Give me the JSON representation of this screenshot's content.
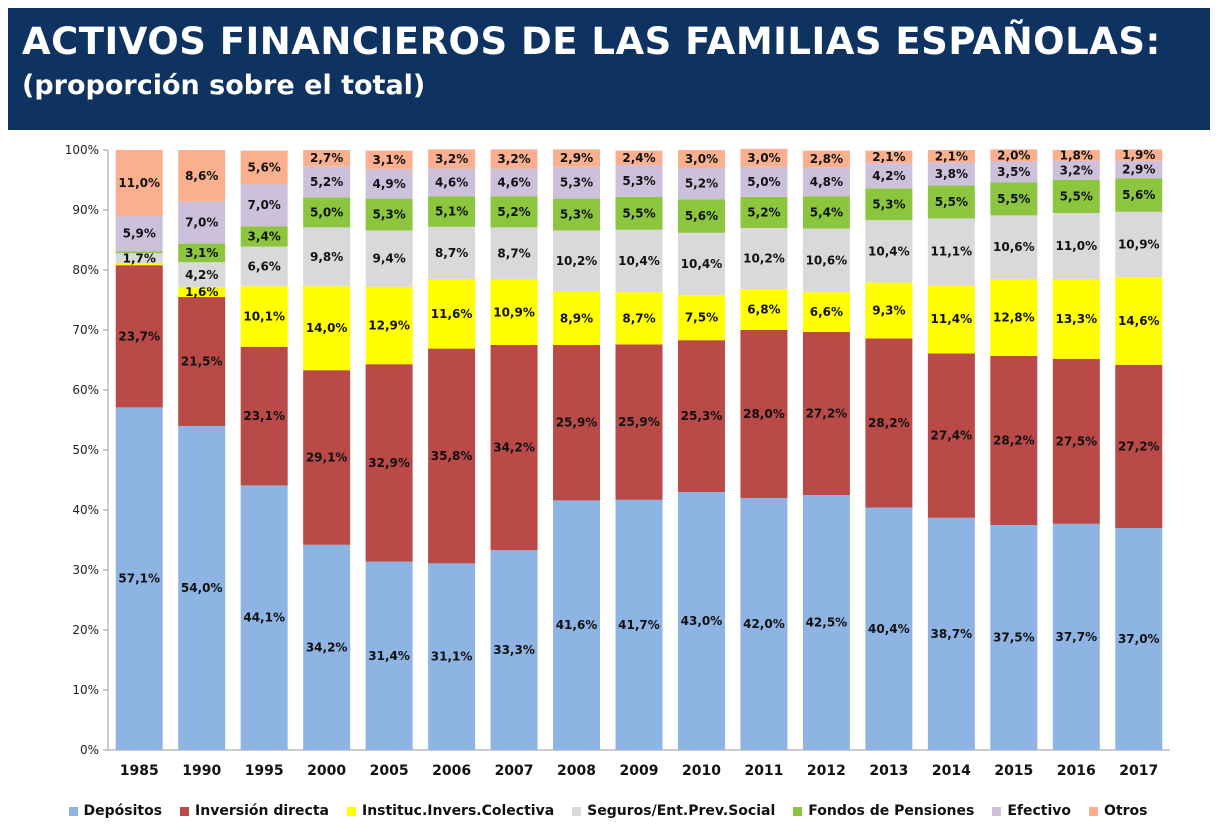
{
  "header": {
    "title": "ACTIVOS FINANCIEROS DE LAS FAMILIAS ESPAÑOLAS:",
    "subtitle": "(proporción sobre el total)"
  },
  "chart_data": {
    "type": "bar",
    "stacked": true,
    "categories": [
      "1985",
      "1990",
      "1995",
      "2000",
      "2005",
      "2006",
      "2007",
      "2008",
      "2009",
      "2010",
      "2011",
      "2012",
      "2013",
      "2014",
      "2015",
      "2016",
      "2017"
    ],
    "ylim": [
      0,
      100
    ],
    "yticks": [
      "0%",
      "10%",
      "20%",
      "30%",
      "40%",
      "50%",
      "60%",
      "70%",
      "80%",
      "90%",
      "100%"
    ],
    "grid": false,
    "legend_position": "bottom",
    "series": [
      {
        "name": "Depósitos",
        "color": "#8eb4e3",
        "values": [
          57.1,
          54.0,
          44.1,
          34.2,
          31.4,
          31.1,
          33.3,
          41.6,
          41.7,
          43.0,
          42.0,
          42.5,
          40.4,
          38.7,
          37.5,
          37.7,
          37.0
        ],
        "labels": [
          "57,1%",
          "54,0%",
          "44,1%",
          "34,2%",
          "31,4%",
          "31,1%",
          "33,3%",
          "41,6%",
          "41,7%",
          "43,0%",
          "42,0%",
          "42,5%",
          "40,4%",
          "38,7%",
          "37,5%",
          "37,7%",
          "37,0%"
        ]
      },
      {
        "name": "Inversión directa",
        "color": "#b94a48",
        "values": [
          23.7,
          21.5,
          23.1,
          29.1,
          32.9,
          35.8,
          34.2,
          25.9,
          25.9,
          25.3,
          28.0,
          27.2,
          28.2,
          27.4,
          28.2,
          27.5,
          27.2
        ],
        "labels": [
          "23,7%",
          "21,5%",
          "23,1%",
          "29,1%",
          "32,9%",
          "35,8%",
          "34,2%",
          "25,9%",
          "25,9%",
          "25,3%",
          "28,0%",
          "27,2%",
          "28,2%",
          "27,4%",
          "28,2%",
          "27,5%",
          "27,2%"
        ]
      },
      {
        "name": "Instituc.Invers.Colectiva",
        "color": "#ffff00",
        "values": [
          0.3,
          1.6,
          10.1,
          14.0,
          12.9,
          11.6,
          10.9,
          8.9,
          8.7,
          7.5,
          6.8,
          6.6,
          9.3,
          11.4,
          12.8,
          13.3,
          14.6
        ],
        "labels": [
          "",
          "1,6%",
          "10,1%",
          "14,0%",
          "12,9%",
          "11,6%",
          "10,9%",
          "8,9%",
          "8,7%",
          "7,5%",
          "6,8%",
          "6,6%",
          "9,3%",
          "11,4%",
          "12,8%",
          "13,3%",
          "14,6%"
        ]
      },
      {
        "name": "Seguros/Ent.Prev.Social",
        "color": "#d9d9d9",
        "values": [
          1.7,
          4.2,
          6.6,
          9.8,
          9.4,
          8.7,
          8.7,
          10.2,
          10.4,
          10.4,
          10.2,
          10.6,
          10.4,
          11.1,
          10.6,
          11.0,
          10.9
        ],
        "labels": [
          "1,7%",
          "4,2%",
          "6,6%",
          "9,8%",
          "9,4%",
          "8,7%",
          "8,7%",
          "10,2%",
          "10,4%",
          "10,4%",
          "10,2%",
          "10,6%",
          "10,4%",
          "11,1%",
          "10,6%",
          "11,0%",
          "10,9%"
        ]
      },
      {
        "name": "Fondos de Pensiones",
        "color": "#8cc63f",
        "values": [
          0.3,
          3.1,
          3.4,
          5.0,
          5.3,
          5.1,
          5.2,
          5.3,
          5.5,
          5.6,
          5.2,
          5.4,
          5.3,
          5.5,
          5.5,
          5.5,
          5.6
        ],
        "labels": [
          "",
          "3,1%",
          "3,4%",
          "5,0%",
          "5,3%",
          "5,1%",
          "5,2%",
          "5,3%",
          "5,5%",
          "5,6%",
          "5,2%",
          "5,4%",
          "5,3%",
          "5,5%",
          "5,5%",
          "5,5%",
          "5,6%"
        ]
      },
      {
        "name": "Efectivo",
        "color": "#ccc0da",
        "values": [
          5.9,
          7.0,
          7.0,
          5.2,
          4.9,
          4.6,
          4.6,
          5.3,
          5.3,
          5.2,
          5.0,
          4.8,
          4.2,
          3.8,
          3.5,
          3.2,
          2.9
        ],
        "labels": [
          "5,9%",
          "7,0%",
          "7,0%",
          "5,2%",
          "4,9%",
          "4,6%",
          "4,6%",
          "5,3%",
          "5,3%",
          "5,2%",
          "5,0%",
          "4,8%",
          "4,2%",
          "3,8%",
          "3,5%",
          "3,2%",
          "2,9%"
        ]
      },
      {
        "name": "Otros",
        "color": "#fab08f",
        "values": [
          11.0,
          8.6,
          5.6,
          2.7,
          3.1,
          3.2,
          3.2,
          2.9,
          2.4,
          3.0,
          3.0,
          2.8,
          2.1,
          2.1,
          2.0,
          1.8,
          1.9
        ],
        "labels": [
          "11,0%",
          "8,6%",
          "5,6%",
          "2,7%",
          "3,1%",
          "3,2%",
          "3,2%",
          "2,9%",
          "2,4%",
          "3,0%",
          "3,0%",
          "2,8%",
          "2,1%",
          "2,1%",
          "2,0%",
          "1,8%",
          "1,9%"
        ]
      }
    ]
  }
}
